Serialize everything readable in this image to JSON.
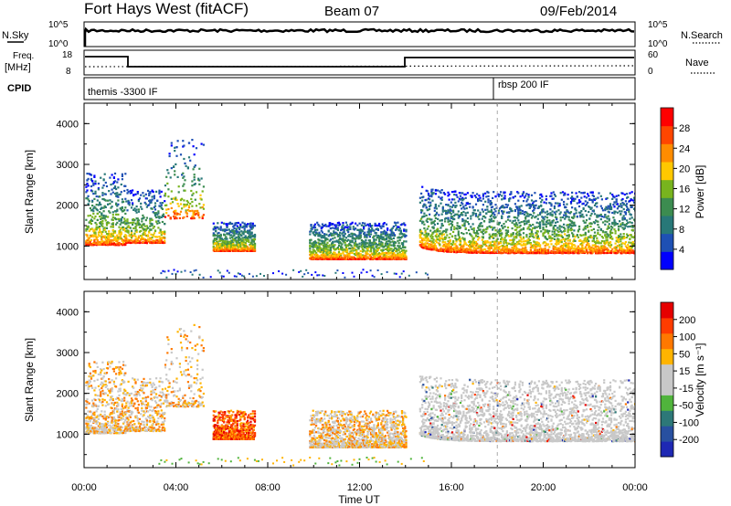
{
  "header": {
    "station": "Fort Hays West (fitACF)",
    "beam": "Beam 07",
    "date": "09/Feb/2014"
  },
  "top_panels": {
    "nsky_label": "N.Sky",
    "nsearch_label": "N.Search",
    "nsky_ticks": [
      "10^5",
      "10^0"
    ],
    "nsearch_ticks": [
      "10^5",
      "10^0"
    ],
    "freq_label": "Freq.",
    "freq_unit": "[MHz]",
    "freq_ticks": [
      "18",
      "8"
    ],
    "nave_label": "Nave",
    "nave_ticks": [
      "60",
      "0"
    ],
    "cpid_label": "CPID",
    "cpid_entries": [
      {
        "label": "themis -3300 IF",
        "start_hour": 0
      },
      {
        "label": "rbsp 200 IF",
        "start_hour": 18
      }
    ]
  },
  "chart_data": [
    {
      "type": "heatmap",
      "name": "power",
      "xlabel": "",
      "ylabel": "Slant Range [km]",
      "x_ticks": [
        "00:00",
        "04:00",
        "08:00",
        "12:00",
        "16:00",
        "20:00",
        "00:00"
      ],
      "y_ticks": [
        "1000",
        "2000",
        "3000",
        "4000"
      ],
      "xlim_hours": [
        0,
        24
      ],
      "ylim_km": [
        180,
        4500
      ],
      "colorbar_label": "Power [dB]",
      "colorbar_ticks": [
        "28",
        "24",
        "20",
        "16",
        "12",
        "8",
        "4"
      ],
      "colorbar_colors": [
        "#0000ff",
        "#1e50b4",
        "#287878",
        "#3c8c50",
        "#78b41e",
        "#ffc800",
        "#ff8c00",
        "#ff4600",
        "#ff0000"
      ]
    },
    {
      "type": "heatmap",
      "name": "velocity",
      "xlabel": "Time UT",
      "ylabel": "Slant Range [km]",
      "x_ticks": [
        "00:00",
        "04:00",
        "08:00",
        "12:00",
        "16:00",
        "20:00",
        "00:00"
      ],
      "y_ticks": [
        "1000",
        "2000",
        "3000",
        "4000"
      ],
      "xlim_hours": [
        0,
        24
      ],
      "ylim_km": [
        180,
        4500
      ],
      "colorbar_label": "Velocity [m s⁻¹]",
      "colorbar_ticks": [
        "200",
        "100",
        "50",
        "15",
        "-15",
        "-50",
        "-100",
        "-200"
      ],
      "colorbar_colors": [
        "#1e28b4",
        "#2850a0",
        "#2d7878",
        "#50b43c",
        "#c8c8c8",
        "#c8c8c8",
        "#ffb400",
        "#ff7800",
        "#ff3c00",
        "#e60000"
      ]
    }
  ]
}
